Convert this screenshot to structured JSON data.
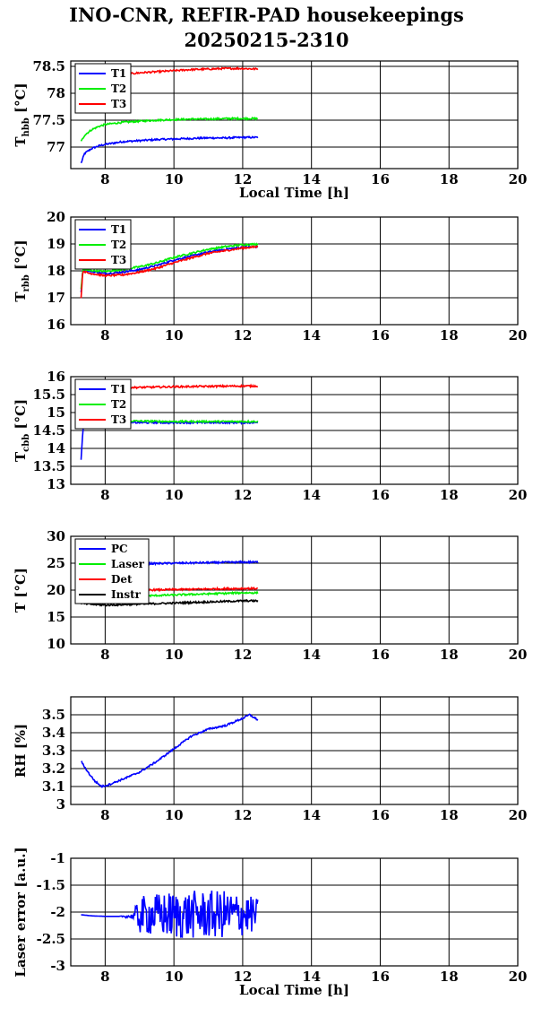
{
  "title_line1": "INO-CNR, REFIR-PAD housekeepings",
  "title_line2": "20250215-2310",
  "colors": {
    "blue": "#0000ff",
    "green": "#00ee00",
    "red": "#ff0000",
    "black": "#000000"
  },
  "chart_data": [
    {
      "type": "line",
      "ylabel": "T",
      "ylabel_sub": "hbb",
      "ylabel_unit": "[°C]",
      "xlabel": "Local Time [h]",
      "xlim": [
        7,
        20
      ],
      "xticks": [
        8,
        10,
        12,
        14,
        16,
        18,
        20
      ],
      "ylim": [
        76.6,
        78.6
      ],
      "yticks": [
        77,
        77.5,
        78,
        78.5
      ],
      "ytick_labels": [
        "77",
        "77.5",
        "78",
        "78.5"
      ],
      "grid": true,
      "legend_position": "top-left",
      "series": [
        {
          "name": "T1",
          "color": "blue",
          "x": [
            7.3,
            7.4,
            7.6,
            7.8,
            8.0,
            8.5,
            9.0,
            9.5,
            10.0,
            10.5,
            11.0,
            11.5,
            12.0,
            12.45
          ],
          "y": [
            76.7,
            76.88,
            76.97,
            77.02,
            77.05,
            77.1,
            77.12,
            77.14,
            77.15,
            77.16,
            77.17,
            77.17,
            77.18,
            77.18
          ]
        },
        {
          "name": "T2",
          "color": "green",
          "x": [
            7.3,
            7.4,
            7.6,
            7.8,
            8.0,
            8.5,
            9.0,
            9.5,
            10.0,
            10.5,
            11.0,
            11.5,
            12.0,
            12.45
          ],
          "y": [
            77.1,
            77.22,
            77.32,
            77.38,
            77.42,
            77.46,
            77.48,
            77.5,
            77.51,
            77.52,
            77.52,
            77.53,
            77.53,
            77.53
          ]
        },
        {
          "name": "T3",
          "color": "red",
          "x": [
            8.0,
            8.5,
            9.0,
            9.5,
            10.0,
            10.5,
            11.0,
            11.5,
            12.0,
            12.45
          ],
          "y": [
            78.3,
            78.35,
            78.38,
            78.4,
            78.42,
            78.44,
            78.45,
            78.46,
            78.46,
            78.45
          ]
        }
      ]
    },
    {
      "type": "line",
      "ylabel": "T",
      "ylabel_sub": "rbb",
      "ylabel_unit": "[°C]",
      "xlim": [
        7,
        20
      ],
      "xticks": [
        8,
        10,
        12,
        14,
        16,
        18,
        20
      ],
      "ylim": [
        16,
        20
      ],
      "yticks": [
        16,
        17,
        18,
        19,
        20
      ],
      "ytick_labels": [
        "16",
        "17",
        "18",
        "19",
        "20"
      ],
      "grid": true,
      "legend_position": "top-left",
      "series": [
        {
          "name": "T1",
          "color": "blue",
          "x": [
            7.3,
            7.35,
            7.5,
            8.0,
            8.5,
            9.0,
            9.5,
            10.0,
            10.5,
            11.0,
            11.5,
            12.0,
            12.45
          ],
          "y": [
            17.2,
            18.05,
            18.0,
            17.9,
            17.95,
            18.05,
            18.2,
            18.4,
            18.55,
            18.7,
            18.8,
            18.88,
            18.9
          ]
        },
        {
          "name": "T2",
          "color": "green",
          "x": [
            7.3,
            7.35,
            7.5,
            8.0,
            8.5,
            9.0,
            9.5,
            10.0,
            10.5,
            11.0,
            11.5,
            12.0,
            12.45
          ],
          "y": [
            17.3,
            18.05,
            18.02,
            17.98,
            18.05,
            18.15,
            18.3,
            18.5,
            18.65,
            18.8,
            18.9,
            18.97,
            19.0
          ]
        },
        {
          "name": "T3",
          "color": "red",
          "x": [
            7.3,
            7.35,
            7.5,
            8.0,
            8.5,
            9.0,
            9.5,
            10.0,
            10.5,
            11.0,
            11.5,
            12.0,
            12.45
          ],
          "y": [
            17.0,
            18.0,
            17.92,
            17.82,
            17.85,
            17.95,
            18.1,
            18.3,
            18.48,
            18.65,
            18.75,
            18.85,
            18.9
          ]
        }
      ]
    },
    {
      "type": "line",
      "ylabel": "T",
      "ylabel_sub": "cbb",
      "ylabel_unit": "[°C]",
      "xlim": [
        7,
        20
      ],
      "xticks": [
        8,
        10,
        12,
        14,
        16,
        18,
        20
      ],
      "ylim": [
        13,
        16
      ],
      "yticks": [
        13,
        13.5,
        14,
        14.5,
        15,
        15.5,
        16
      ],
      "ytick_labels": [
        "13",
        "13.5",
        "14",
        "14.5",
        "15",
        "15.5",
        "16"
      ],
      "grid": true,
      "legend_position": "top-left",
      "series": [
        {
          "name": "T1",
          "color": "blue",
          "x": [
            7.3,
            7.35,
            7.4,
            7.5,
            8.0,
            9.0,
            10.0,
            11.0,
            12.0,
            12.45
          ],
          "y": [
            13.7,
            14.5,
            14.72,
            14.75,
            14.72,
            14.72,
            14.72,
            14.72,
            14.72,
            14.72
          ]
        },
        {
          "name": "T2",
          "color": "green",
          "x": [
            7.5,
            8.0,
            9.0,
            10.0,
            11.0,
            12.0,
            12.45
          ],
          "y": [
            14.8,
            14.78,
            14.76,
            14.75,
            14.75,
            14.75,
            14.75
          ]
        },
        {
          "name": "T3",
          "color": "red",
          "x": [
            7.5,
            8.0,
            9.0,
            10.0,
            11.0,
            12.0,
            12.45
          ],
          "y": [
            15.7,
            15.7,
            15.7,
            15.72,
            15.73,
            15.74,
            15.74
          ]
        }
      ]
    },
    {
      "type": "line",
      "ylabel": "T [°C]",
      "xlim": [
        7,
        20
      ],
      "xticks": [
        8,
        10,
        12,
        14,
        16,
        18,
        20
      ],
      "ylim": [
        10,
        30
      ],
      "yticks": [
        10,
        15,
        20,
        25,
        30
      ],
      "ytick_labels": [
        "10",
        "15",
        "20",
        "25",
        "30"
      ],
      "grid": true,
      "legend_position": "top-left",
      "series": [
        {
          "name": "PC",
          "color": "blue",
          "x": [
            8.0,
            9.0,
            10.0,
            11.0,
            12.0,
            12.45
          ],
          "y": [
            24.8,
            24.9,
            25.0,
            25.1,
            25.2,
            25.2
          ]
        },
        {
          "name": "Laser",
          "color": "green",
          "x": [
            8.5,
            9.0,
            10.0,
            11.0,
            12.0,
            12.45
          ],
          "y": [
            18.8,
            18.9,
            19.1,
            19.3,
            19.5,
            19.5
          ]
        },
        {
          "name": "Det",
          "color": "red",
          "x": [
            8.5,
            9.0,
            10.0,
            11.0,
            12.0,
            12.45
          ],
          "y": [
            19.9,
            20.0,
            20.1,
            20.2,
            20.3,
            20.3
          ]
        },
        {
          "name": "Instr",
          "color": "black",
          "x": [
            7.3,
            8.0,
            9.0,
            10.0,
            11.0,
            12.0,
            12.45
          ],
          "y": [
            17.5,
            17.2,
            17.4,
            17.6,
            17.8,
            18.0,
            18.0
          ]
        }
      ]
    },
    {
      "type": "line",
      "ylabel": "RH [%]",
      "xlim": [
        7,
        20
      ],
      "xticks": [
        8,
        10,
        12,
        14,
        16,
        18,
        20
      ],
      "ylim": [
        3,
        3.6
      ],
      "yticks": [
        3,
        3.1,
        3.2,
        3.3,
        3.4,
        3.5
      ],
      "ytick_labels": [
        "3",
        "3.1",
        "3.2",
        "3.3",
        "3.4",
        "3.5"
      ],
      "grid": true,
      "series": [
        {
          "color": "blue",
          "x": [
            7.3,
            7.5,
            7.7,
            7.9,
            8.1,
            8.5,
            9.0,
            9.5,
            10.0,
            10.5,
            11.0,
            11.5,
            12.0,
            12.2,
            12.45
          ],
          "y": [
            3.24,
            3.18,
            3.13,
            3.1,
            3.11,
            3.14,
            3.18,
            3.24,
            3.31,
            3.38,
            3.42,
            3.44,
            3.48,
            3.5,
            3.47
          ]
        }
      ]
    },
    {
      "type": "line",
      "ylabel": "Laser error [a.u.]",
      "xlabel": "Local Time [h]",
      "xlim": [
        7,
        20
      ],
      "xticks": [
        8,
        10,
        12,
        14,
        16,
        18,
        20
      ],
      "ylim": [
        -3,
        -1
      ],
      "yticks": [
        -3,
        -2.5,
        -2,
        -1.5,
        -1
      ],
      "ytick_labels": [
        "-3",
        "-2.5",
        "-2",
        "-1.5",
        "-1"
      ],
      "grid": true,
      "series": [
        {
          "color": "blue",
          "x": [
            7.3,
            7.6,
            8.0,
            8.4,
            8.8,
            9.0,
            9.5,
            10.0,
            10.5,
            11.0,
            11.5,
            12.0,
            12.45
          ],
          "y": [
            -2.05,
            -2.07,
            -2.08,
            -2.08,
            -2.08,
            -2.06,
            -2.05,
            -2.06,
            -2.05,
            -2.05,
            -2.04,
            -2.05,
            -2.05
          ],
          "noise_amplitude": [
            0,
            0,
            0,
            0,
            0.05,
            0.35,
            0.4,
            0.45,
            0.45,
            0.45,
            0.45,
            0.4,
            0.3
          ]
        }
      ]
    }
  ]
}
